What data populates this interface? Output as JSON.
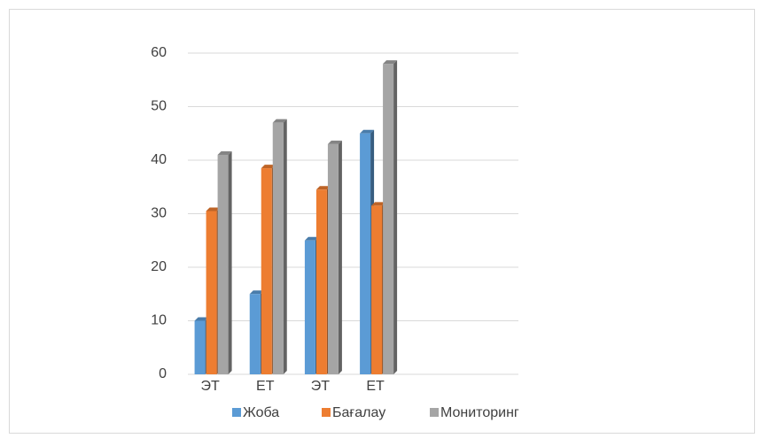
{
  "chart_data": {
    "type": "bar3d",
    "categories": [
      "ЭТ",
      "ЕТ",
      "ЭТ",
      "ЕТ",
      null,
      null
    ],
    "series": [
      {
        "name": "Жоба",
        "color": "#5b9bd5",
        "values": [
          10,
          15,
          25,
          45,
          null,
          null
        ]
      },
      {
        "name": "Бағалау",
        "color": "#ed7d31",
        "values": [
          30.5,
          38.5,
          34.5,
          31.5,
          null,
          null
        ]
      },
      {
        "name": "Мониторинг",
        "color": "#a5a5a5",
        "values": [
          41,
          47,
          43,
          58,
          null,
          null
        ]
      }
    ],
    "ylim": [
      0,
      60
    ],
    "yticks": [
      0,
      10,
      20,
      30,
      40,
      50,
      60
    ],
    "grid": true,
    "legend": "bottom"
  }
}
